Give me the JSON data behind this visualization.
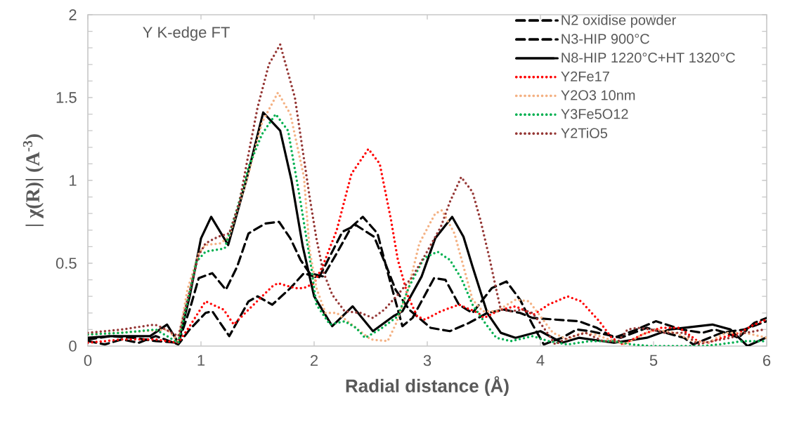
{
  "chart_data": {
    "type": "line",
    "xlabel": "Radial distance (Å)",
    "ylabel": "| χ(R)| (A$^{-3}$)",
    "annotations": [
      "Y K-edge FT"
    ],
    "xlim": [
      0,
      6
    ],
    "ylim": [
      0,
      2
    ],
    "xticks": [
      0,
      1,
      2,
      3,
      4,
      5,
      6
    ],
    "yticks": [
      0,
      {
        "value": 0.1,
        "label": null
      },
      {
        "value": 0.2,
        "label": null
      },
      {
        "value": 0.3,
        "label": null
      },
      {
        "value": 0.4,
        "label": null
      },
      0.5,
      {
        "value": 0.6,
        "label": null
      },
      {
        "value": 0.7,
        "label": null
      },
      {
        "value": 0.8,
        "label": null
      },
      {
        "value": 0.9,
        "label": null
      },
      1,
      {
        "value": 1.1,
        "label": null
      },
      {
        "value": 1.2,
        "label": null
      },
      {
        "value": 1.3,
        "label": null
      },
      {
        "value": 1.4,
        "label": null
      },
      1.5,
      {
        "value": 1.6,
        "label": null
      },
      {
        "value": 1.7,
        "label": null
      },
      {
        "value": 1.8,
        "label": null
      },
      {
        "value": 1.9,
        "label": null
      },
      2
    ],
    "grid": false,
    "legend": "top right",
    "marker": "none",
    "series": [
      {
        "name": "N2 oxidise powder",
        "color": "#000000",
        "line_style": "dashed",
        "x": [
          0,
          0.15,
          0.3,
          0.45,
          0.6,
          0.8,
          0.9,
          1.04,
          1.1,
          1.25,
          1.42,
          1.5,
          1.63,
          1.79,
          1.91,
          2.04,
          2.25,
          2.37,
          2.53,
          2.64,
          2.72,
          2.84,
          3.03,
          3.2,
          3.37,
          3.53,
          3.68,
          3.82,
          3.93,
          4.13,
          4.34,
          4.5,
          4.65,
          4.85,
          5.02,
          5.25,
          5.43,
          5.54,
          5.64,
          5.75,
          5.89,
          6
        ],
        "values": [
          0.03,
          0.01,
          0.04,
          0.02,
          0.06,
          0.01,
          0.1,
          0.2,
          0.21,
          0.06,
          0.27,
          0.3,
          0.25,
          0.35,
          0.44,
          0.41,
          0.69,
          0.73,
          0.66,
          0.48,
          0.34,
          0.22,
          0.11,
          0.09,
          0.14,
          0.2,
          0.22,
          0.2,
          0.17,
          0.16,
          0.15,
          0.11,
          0.05,
          0.1,
          0.15,
          0.1,
          0.08,
          0.1,
          0.08,
          0.05,
          0.14,
          0.17
        ]
      },
      {
        "name": "N3-HIP 900°C",
        "color": "#000000",
        "line_style": "dashed",
        "x": [
          0,
          0.2,
          0.4,
          0.6,
          0.8,
          0.9,
          0.98,
          1.1,
          1.22,
          1.32,
          1.42,
          1.57,
          1.69,
          1.79,
          1.88,
          1.96,
          2.08,
          2.2,
          2.33,
          2.43,
          2.56,
          2.66,
          2.74,
          2.78,
          2.87,
          3.06,
          3.16,
          3.28,
          3.4,
          3.57,
          3.7,
          3.82,
          3.93,
          4.03,
          4.19,
          4.32,
          4.44,
          4.71,
          4.94,
          5.27,
          5.35,
          5.6,
          5.8,
          6
        ],
        "values": [
          0.04,
          0.06,
          0.05,
          0.03,
          0.02,
          0.22,
          0.41,
          0.44,
          0.34,
          0.48,
          0.68,
          0.74,
          0.75,
          0.65,
          0.52,
          0.44,
          0.42,
          0.56,
          0.72,
          0.78,
          0.68,
          0.42,
          0.22,
          0.12,
          0.17,
          0.41,
          0.4,
          0.25,
          0.2,
          0.35,
          0.39,
          0.28,
          0.13,
          0.01,
          0.05,
          0.1,
          0.09,
          0.05,
          0.11,
          0.05,
          0.01,
          0.08,
          0.1,
          0.15
        ]
      },
      {
        "name": "N8-HIP 1220°C+HT 1320°C",
        "color": "#000000",
        "line_style": "solid",
        "x": [
          0,
          0.2,
          0.4,
          0.55,
          0.7,
          0.8,
          0.9,
          1.0,
          1.09,
          1.24,
          1.4,
          1.55,
          1.7,
          1.8,
          1.9,
          2.0,
          2.16,
          2.34,
          2.52,
          2.7,
          2.78,
          2.95,
          3.07,
          3.22,
          3.32,
          3.4,
          3.53,
          3.65,
          3.78,
          4.0,
          4.19,
          4.34,
          4.65,
          4.94,
          5.14,
          5.52,
          5.68,
          5.83,
          5.99
        ],
        "values": [
          0.05,
          0.06,
          0.06,
          0.06,
          0.13,
          0.02,
          0.3,
          0.65,
          0.78,
          0.61,
          1.0,
          1.41,
          1.3,
          1.0,
          0.6,
          0.3,
          0.12,
          0.24,
          0.09,
          0.18,
          0.21,
          0.42,
          0.65,
          0.78,
          0.66,
          0.48,
          0.2,
          0.08,
          0.05,
          0.09,
          0.02,
          0.05,
          0.02,
          0.05,
          0.1,
          0.13,
          0.1,
          0.0,
          0.05
        ]
      },
      {
        "name": "Y2Fe17",
        "color": "#ff0000",
        "line_style": "dotted",
        "x": [
          0,
          0.3,
          0.6,
          0.8,
          0.9,
          1.04,
          1.2,
          1.29,
          1.42,
          1.63,
          1.68,
          1.83,
          1.91,
          2.0,
          2.08,
          2.2,
          2.33,
          2.48,
          2.58,
          2.68,
          2.74,
          2.83,
          2.91,
          2.98,
          3.12,
          3.28,
          3.45,
          3.5,
          3.65,
          3.78,
          3.94,
          4.07,
          4.24,
          4.36,
          4.52,
          4.63,
          4.73,
          4.9,
          5.06,
          5.23,
          5.39,
          5.48,
          5.6,
          5.76,
          5.89,
          6
        ],
        "values": [
          0.02,
          0.04,
          0.04,
          0.02,
          0.12,
          0.27,
          0.22,
          0.13,
          0.22,
          0.36,
          0.38,
          0.35,
          0.35,
          0.38,
          0.49,
          0.7,
          1.04,
          1.19,
          1.1,
          0.76,
          0.52,
          0.3,
          0.18,
          0.16,
          0.21,
          0.25,
          0.2,
          0.17,
          0.22,
          0.24,
          0.19,
          0.25,
          0.3,
          0.27,
          0.15,
          0.05,
          0.01,
          0.07,
          0.11,
          0.11,
          0.03,
          0.02,
          0.05,
          0.08,
          0.13,
          0.16
        ]
      },
      {
        "name": "Y2O3 10nm",
        "color": "#f4b183",
        "line_style": "dotted",
        "x": [
          0,
          0.5,
          0.7,
          0.8,
          0.88,
          0.98,
          1.04,
          1.17,
          1.25,
          1.42,
          1.54,
          1.68,
          1.79,
          1.91,
          1.96,
          2.02,
          2.1,
          2.2,
          2.37,
          2.5,
          2.65,
          2.72,
          2.83,
          2.93,
          3.07,
          3.13,
          3.24,
          3.32,
          3.4,
          3.49,
          3.61,
          3.78,
          3.9,
          4.0,
          4.11,
          4.24,
          4.36,
          4.48,
          4.61,
          4.75,
          4.9,
          5.02,
          5.19,
          5.35,
          5.48,
          5.64,
          5.81,
          6
        ],
        "values": [
          0.07,
          0.09,
          0.1,
          0.03,
          0.34,
          0.56,
          0.61,
          0.62,
          0.66,
          1.04,
          1.35,
          1.53,
          1.4,
          1.02,
          0.58,
          0.35,
          0.2,
          0.2,
          0.11,
          0.04,
          0.03,
          0.13,
          0.34,
          0.62,
          0.8,
          0.82,
          0.68,
          0.48,
          0.28,
          0.21,
          0.21,
          0.28,
          0.27,
          0.18,
          0.08,
          0.04,
          0.08,
          0.07,
          0.04,
          0.01,
          0.07,
          0.1,
          0.08,
          0.03,
          0.02,
          0.08,
          0.08,
          0.05
        ]
      },
      {
        "name": "Y3Fe5O12",
        "color": "#00b050",
        "line_style": "dotted",
        "x": [
          0,
          0.3,
          0.6,
          0.8,
          0.96,
          1.04,
          1.21,
          1.32,
          1.42,
          1.54,
          1.66,
          1.77,
          1.88,
          1.98,
          2.02,
          2.14,
          2.27,
          2.37,
          2.45,
          2.58,
          2.74,
          2.84,
          2.97,
          3.09,
          3.2,
          3.3,
          3.4,
          3.51,
          3.61,
          3.74,
          3.93,
          4.07,
          4.24,
          4.44,
          4.65,
          4.8,
          4.98,
          5.17,
          5.43,
          5.58,
          5.79,
          5.98
        ],
        "values": [
          0.07,
          0.08,
          0.1,
          0.02,
          0.51,
          0.57,
          0.59,
          0.83,
          1.08,
          1.28,
          1.4,
          1.3,
          0.87,
          0.45,
          0.25,
          0.13,
          0.15,
          0.11,
          0.05,
          0.1,
          0.18,
          0.36,
          0.53,
          0.57,
          0.52,
          0.41,
          0.25,
          0.14,
          0.05,
          0.03,
          0.06,
          0.03,
          0.01,
          0.03,
          0.03,
          0.01,
          0.0,
          0.0,
          0.0,
          0.01,
          0.03,
          0.03
        ]
      },
      {
        "name": "Y2TiO5",
        "color": "#953735",
        "line_style": "dotted",
        "x": [
          0,
          0.3,
          0.59,
          0.63,
          0.8,
          0.88,
          0.98,
          1.04,
          1.15,
          1.25,
          1.34,
          1.42,
          1.5,
          1.6,
          1.7,
          1.83,
          1.96,
          2.02,
          2.08,
          2.16,
          2.27,
          2.41,
          2.52,
          2.62,
          2.74,
          2.87,
          2.99,
          3.12,
          3.2,
          3.3,
          3.4,
          3.47,
          3.55,
          3.61,
          3.65,
          3.74,
          3.84,
          3.93,
          4.03,
          4.13,
          4.24,
          4.4,
          4.55,
          4.69,
          4.77,
          4.86,
          4.98,
          5.1,
          5.27,
          5.39,
          5.52,
          5.68,
          5.81,
          5.98
        ],
        "values": [
          0.08,
          0.1,
          0.13,
          0.12,
          0.06,
          0.28,
          0.55,
          0.62,
          0.66,
          0.68,
          0.87,
          1.16,
          1.44,
          1.7,
          1.82,
          1.5,
          0.9,
          0.65,
          0.45,
          0.31,
          0.21,
          0.2,
          0.17,
          0.22,
          0.31,
          0.42,
          0.56,
          0.72,
          0.87,
          1.02,
          0.93,
          0.76,
          0.53,
          0.34,
          0.22,
          0.21,
          0.22,
          0.2,
          0.11,
          0.01,
          0.05,
          0.08,
          0.03,
          0.03,
          0.1,
          0.11,
          0.1,
          0.08,
          0.08,
          0.01,
          0.03,
          0.05,
          0.08,
          0.1
        ]
      }
    ]
  }
}
